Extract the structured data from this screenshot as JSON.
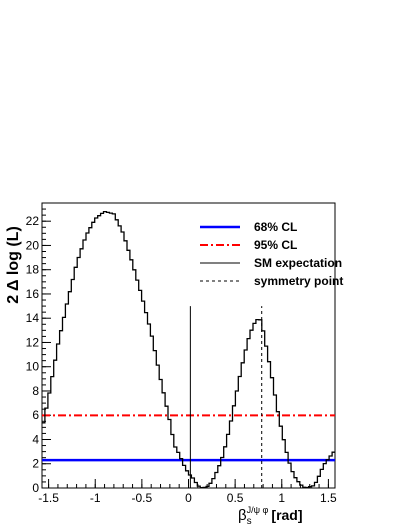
{
  "chart_data": {
    "type": "line",
    "xlabel_main": "β",
    "xlabel_sub": "s",
    "xlabel_sup": "J/ψ φ",
    "xlabel_unit": "[rad]",
    "ylabel": "2 Δ log (L)",
    "xlim": [
      -1.5708,
      1.5708
    ],
    "ylim": [
      0,
      23.5
    ],
    "x_ticks": [
      -1.5,
      -1,
      -0.5,
      0,
      0.5,
      1,
      1.5
    ],
    "x_tick_labels": [
      "-1.5",
      "-1",
      "-0.5",
      "0",
      "0.5",
      "1",
      "1.5"
    ],
    "y_ticks": [
      0,
      2,
      4,
      6,
      8,
      10,
      12,
      14,
      16,
      18,
      20,
      22
    ],
    "y_tick_labels": [
      "0",
      "2",
      "4",
      "6",
      "8",
      "10",
      "12",
      "14",
      "16",
      "18",
      "20",
      "22"
    ],
    "curve": {
      "x": [
        -1.57,
        -1.5,
        -1.4,
        -1.3,
        -1.2,
        -1.1,
        -1.0,
        -0.9,
        -0.8,
        -0.7,
        -0.6,
        -0.5,
        -0.4,
        -0.3,
        -0.2,
        -0.15,
        -0.1,
        -0.05,
        0.0,
        0.05,
        0.1,
        0.15,
        0.2,
        0.25,
        0.3,
        0.35,
        0.4,
        0.45,
        0.5,
        0.55,
        0.6,
        0.65,
        0.7,
        0.75,
        0.78,
        0.8,
        0.85,
        0.9,
        0.95,
        1.0,
        1.05,
        1.1,
        1.15,
        1.2,
        1.25,
        1.3,
        1.35,
        1.4,
        1.45,
        1.5,
        1.57
      ],
      "y": [
        4.8,
        7.5,
        11.8,
        15.3,
        18.5,
        20.8,
        22.2,
        22.8,
        22.6,
        21.0,
        18.5,
        15.8,
        12.8,
        9.0,
        5.5,
        3.5,
        2.8,
        1.9,
        1.2,
        0.8,
        0.2,
        0.0,
        0.1,
        0.5,
        1.3,
        2.2,
        3.6,
        5.3,
        7.3,
        9.2,
        11.0,
        12.5,
        13.5,
        14.0,
        13.8,
        13.0,
        11.0,
        8.9,
        6.6,
        4.7,
        3.0,
        1.6,
        0.8,
        0.3,
        0.0,
        0.1,
        0.2,
        1.0,
        1.9,
        2.4,
        3.1
      ]
    },
    "cl68": {
      "label": "68% CL",
      "value": 2.3,
      "color": "#0000ff"
    },
    "cl95": {
      "label": "95% CL",
      "value": 5.99,
      "color": "#ff0000"
    },
    "sm": {
      "label": "SM expectation",
      "x": 0.02,
      "y_top": 15.0,
      "color": "#000000"
    },
    "symmetry": {
      "label": "symmetry point",
      "x": 0.785,
      "y_top": 15.0,
      "color": "#000000"
    },
    "grid": false,
    "legend_position": "top-right"
  }
}
